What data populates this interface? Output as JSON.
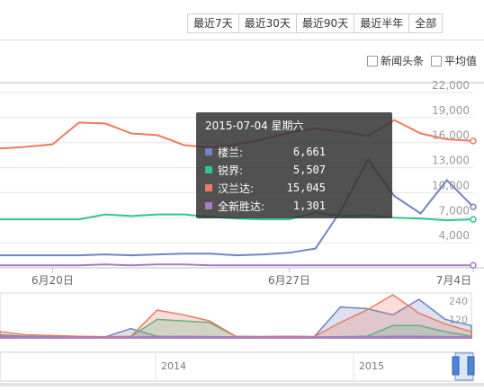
{
  "range_buttons": [
    "最近7天",
    "最近30天",
    "最近90天",
    "最近半年",
    "全部"
  ],
  "toggles": {
    "news": "新闻头条",
    "average": "平均值"
  },
  "colors": {
    "loulan": "#7283c4",
    "ruijie": "#2ec495",
    "hanlanda": "#ec7a5e",
    "quanxin": "#a67bc7"
  },
  "chart_data": {
    "type": "line",
    "y_ticks": [
      "22,000",
      "19,000",
      "16,000",
      "13,000",
      "10,000",
      "7,000",
      "4,000"
    ],
    "x_labels": [
      "6月20日",
      "6月27日",
      "7月4日"
    ],
    "ylim": [
      1000,
      22000
    ],
    "grid": true,
    "series": [
      {
        "name": "楼兰",
        "values": [
          2500,
          2500,
          2500,
          2500,
          2600,
          2500,
          2600,
          2700,
          2700,
          2500,
          2600,
          2800,
          3300,
          8000,
          14000,
          9600,
          7500,
          11500,
          8300
        ]
      },
      {
        "name": "锐界",
        "values": [
          6800,
          6800,
          6800,
          6800,
          7400,
          7200,
          7400,
          7400,
          7100,
          6900,
          6800,
          6800,
          7600,
          7200,
          7300,
          7000,
          6900,
          6700,
          6800
        ]
      },
      {
        "name": "汉兰达",
        "values": [
          15300,
          15500,
          15800,
          18400,
          18300,
          17100,
          16900,
          15700,
          15400,
          15800,
          16400,
          17200,
          17700,
          17300,
          16800,
          18700,
          17100,
          16400,
          16200
        ]
      },
      {
        "name": "全新胜达",
        "values": [
          1300,
          1300,
          1300,
          1300,
          1400,
          1300,
          1400,
          1400,
          1300,
          1300,
          1300,
          1300,
          1300,
          1300,
          1300,
          1300,
          1300,
          1300,
          1300
        ]
      }
    ]
  },
  "navigator": {
    "y_ticks": [
      "240",
      "120"
    ],
    "years": [
      "2014",
      "2015"
    ]
  },
  "tooltip": {
    "date": "2015-07-04 星期六",
    "rows": [
      {
        "name": "楼兰:",
        "value": "6,661"
      },
      {
        "name": "锐界:",
        "value": "5,507"
      },
      {
        "name": "汉兰达:",
        "value": "15,045"
      },
      {
        "name": "全新胜达:",
        "value": "1,301"
      }
    ]
  }
}
